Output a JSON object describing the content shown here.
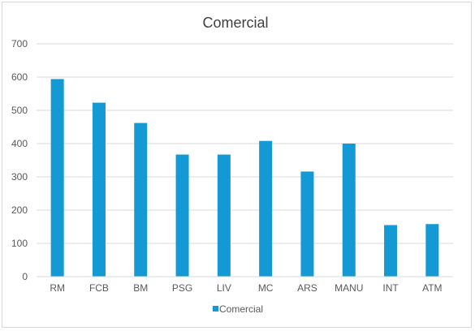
{
  "chart_data": {
    "type": "bar",
    "title": "Comercial",
    "categories": [
      "RM",
      "FCB",
      "BM",
      "PSG",
      "LIV",
      "MC",
      "ARS",
      "MANU",
      "INT",
      "ATM"
    ],
    "series": [
      {
        "name": "Comercial",
        "values": [
          594,
          523,
          462,
          367,
          367,
          408,
          316,
          400,
          155,
          158
        ],
        "color": "#1399d3"
      }
    ],
    "ylim": [
      0,
      700
    ],
    "yticks": [
      0,
      100,
      200,
      300,
      400,
      500,
      600,
      700
    ],
    "grid": true,
    "legend_position": "bottom"
  }
}
